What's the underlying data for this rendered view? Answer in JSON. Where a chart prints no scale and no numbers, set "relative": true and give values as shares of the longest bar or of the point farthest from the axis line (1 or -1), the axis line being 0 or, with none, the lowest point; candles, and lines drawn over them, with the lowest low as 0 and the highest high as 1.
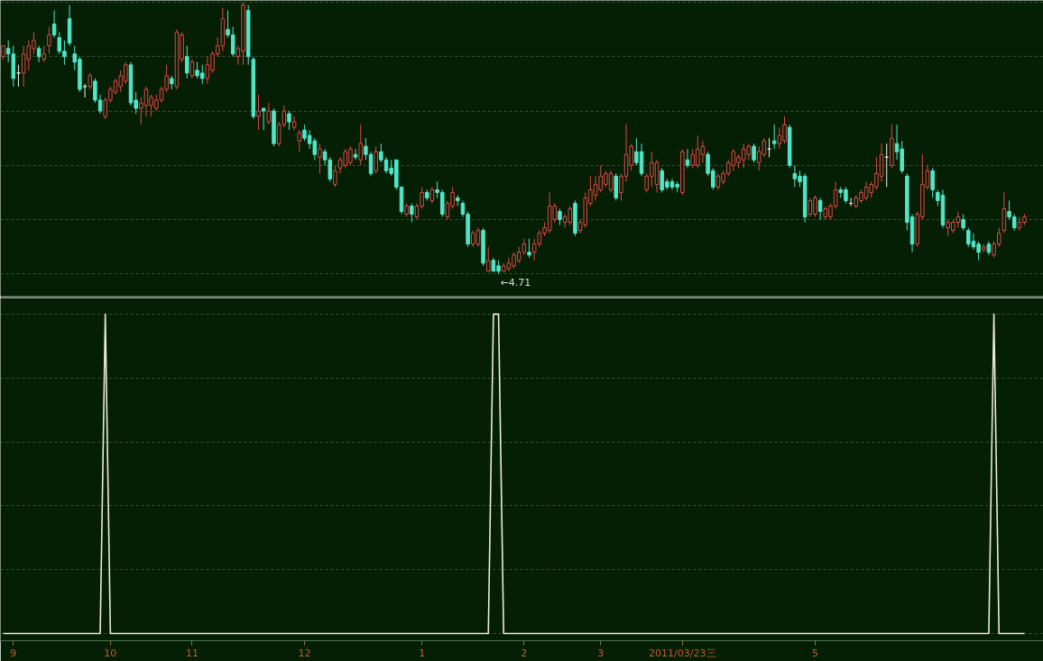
{
  "chart_data": [
    {
      "type": "candlestick",
      "relative": true,
      "grid": "y",
      "tick_labels": false,
      "categories": [
        null,
        null,
        "9",
        null,
        null,
        null,
        null,
        null,
        null,
        null,
        null,
        null,
        null,
        null,
        null,
        null,
        null,
        null,
        null,
        null,
        null,
        "10",
        null,
        null,
        null,
        null,
        null,
        null,
        null,
        null,
        null,
        null,
        null,
        null,
        null,
        null,
        null,
        "11",
        null,
        null,
        null,
        null,
        null,
        null,
        null,
        null,
        null,
        null,
        null,
        null,
        null,
        null,
        null,
        null,
        null,
        null,
        null,
        null,
        null,
        "12",
        null,
        null,
        null,
        null,
        null,
        null,
        null,
        null,
        null,
        null,
        null,
        null,
        null,
        null,
        null,
        null,
        null,
        null,
        null,
        null,
        null,
        null,
        "1",
        null,
        null,
        null,
        null,
        null,
        null,
        null,
        null,
        null,
        null,
        null,
        null,
        null,
        null,
        null,
        null,
        null,
        null,
        null,
        "2",
        null,
        null,
        null,
        null,
        null,
        null,
        null,
        null,
        null,
        null,
        null,
        null,
        null,
        null,
        "3",
        null,
        null,
        null,
        null,
        null,
        null,
        null,
        null,
        null,
        null,
        null,
        null,
        null,
        null,
        null,
        "2011/03/23三",
        null,
        null,
        null,
        null,
        null,
        null,
        null,
        null,
        null,
        null,
        null,
        null,
        null,
        null,
        null,
        null,
        null,
        null,
        null,
        null,
        null,
        null,
        null,
        null,
        null,
        "5",
        null,
        null,
        null,
        null,
        null,
        null,
        null,
        null,
        null,
        null,
        null,
        null,
        null,
        null,
        null,
        null,
        null,
        null,
        null,
        null,
        null,
        null,
        null,
        null,
        null,
        null,
        null,
        null,
        null,
        null,
        null,
        null,
        null,
        null,
        null,
        null,
        null,
        null,
        null,
        null,
        null
      ],
      "ohlc": [
        [
          0.8,
          0.84,
          0.79,
          0.84
        ],
        [
          0.83,
          0.86,
          0.78,
          0.81
        ],
        [
          0.81,
          0.84,
          0.69,
          0.72
        ],
        [
          0.74,
          0.77,
          0.69,
          0.74
        ],
        [
          0.74,
          0.84,
          0.69,
          0.81
        ],
        [
          0.79,
          0.86,
          0.75,
          0.84
        ],
        [
          0.83,
          0.89,
          0.81,
          0.86
        ],
        [
          0.83,
          0.84,
          0.78,
          0.8
        ],
        [
          0.79,
          0.84,
          0.78,
          0.81
        ],
        [
          0.84,
          0.91,
          0.81,
          0.88
        ],
        [
          0.92,
          0.97,
          0.87,
          0.88
        ],
        [
          0.87,
          0.89,
          0.81,
          0.82
        ],
        [
          0.82,
          0.86,
          0.77,
          0.8
        ],
        [
          0.94,
          0.99,
          0.84,
          0.85
        ],
        [
          0.81,
          0.84,
          0.75,
          0.78
        ],
        [
          0.79,
          0.8,
          0.67,
          0.68
        ],
        [
          0.69,
          0.7,
          0.65,
          0.69
        ],
        [
          0.69,
          0.74,
          0.68,
          0.73
        ],
        [
          0.71,
          0.72,
          0.63,
          0.64
        ],
        [
          0.64,
          0.66,
          0.59,
          0.6
        ],
        [
          0.58,
          0.65,
          0.57,
          0.64
        ],
        [
          0.64,
          0.69,
          0.63,
          0.68
        ],
        [
          0.67,
          0.72,
          0.66,
          0.71
        ],
        [
          0.69,
          0.75,
          0.67,
          0.73
        ],
        [
          0.71,
          0.78,
          0.7,
          0.77
        ],
        [
          0.77,
          0.78,
          0.62,
          0.63
        ],
        [
          0.64,
          0.67,
          0.59,
          0.61
        ],
        [
          0.61,
          0.65,
          0.55,
          0.63
        ],
        [
          0.62,
          0.69,
          0.58,
          0.68
        ],
        [
          0.62,
          0.66,
          0.58,
          0.65
        ],
        [
          0.61,
          0.66,
          0.6,
          0.64
        ],
        [
          0.64,
          0.69,
          0.63,
          0.68
        ],
        [
          0.68,
          0.77,
          0.67,
          0.73
        ],
        [
          0.72,
          0.73,
          0.68,
          0.7
        ],
        [
          0.69,
          0.9,
          0.68,
          0.89
        ],
        [
          0.79,
          0.89,
          0.78,
          0.88
        ],
        [
          0.8,
          0.84,
          0.72,
          0.74
        ],
        [
          0.73,
          0.79,
          0.72,
          0.78
        ],
        [
          0.75,
          0.78,
          0.72,
          0.73
        ],
        [
          0.74,
          0.77,
          0.7,
          0.72
        ],
        [
          0.72,
          0.8,
          0.7,
          0.77
        ],
        [
          0.75,
          0.82,
          0.74,
          0.81
        ],
        [
          0.81,
          0.87,
          0.8,
          0.84
        ],
        [
          0.84,
          0.98,
          0.82,
          0.94
        ],
        [
          0.9,
          0.97,
          0.87,
          0.88
        ],
        [
          0.88,
          0.91,
          0.8,
          0.81
        ],
        [
          0.8,
          0.84,
          0.77,
          0.83
        ],
        [
          0.82,
          1,
          0.77,
          0.99
        ],
        [
          0.97,
          0.99,
          0.77,
          0.8
        ],
        [
          0.79,
          0.8,
          0.57,
          0.58
        ],
        [
          0.58,
          0.66,
          0.53,
          0.6
        ],
        [
          0.61,
          0.61,
          0.53,
          0.6
        ],
        [
          0.56,
          0.63,
          0.55,
          0.6
        ],
        [
          0.6,
          0.61,
          0.47,
          0.48
        ],
        [
          0.48,
          0.56,
          0.47,
          0.55
        ],
        [
          0.55,
          0.62,
          0.54,
          0.6
        ],
        [
          0.59,
          0.6,
          0.53,
          0.56
        ],
        [
          0.54,
          0.58,
          0.53,
          0.56
        ],
        [
          0.49,
          0.53,
          0.45,
          0.52
        ],
        [
          0.53,
          0.55,
          0.49,
          0.5
        ],
        [
          0.51,
          0.53,
          0.46,
          0.48
        ],
        [
          0.49,
          0.5,
          0.42,
          0.44
        ],
        [
          0.43,
          0.48,
          0.37,
          0.46
        ],
        [
          0.45,
          0.46,
          0.4,
          0.42
        ],
        [
          0.42,
          0.43,
          0.34,
          0.35
        ],
        [
          0.33,
          0.4,
          0.32,
          0.38
        ],
        [
          0.39,
          0.43,
          0.37,
          0.42
        ],
        [
          0.4,
          0.46,
          0.39,
          0.45
        ],
        [
          0.41,
          0.47,
          0.4,
          0.46
        ],
        [
          0.44,
          0.46,
          0.42,
          0.43
        ],
        [
          0.42,
          0.55,
          0.4,
          0.48
        ],
        [
          0.47,
          0.5,
          0.42,
          0.44
        ],
        [
          0.44,
          0.45,
          0.36,
          0.37
        ],
        [
          0.38,
          0.47,
          0.37,
          0.45
        ],
        [
          0.45,
          0.48,
          0.41,
          0.42
        ],
        [
          0.42,
          0.43,
          0.37,
          0.38
        ],
        [
          0.39,
          0.42,
          0.36,
          0.37
        ],
        [
          0.42,
          0.42,
          0.31,
          0.32
        ],
        [
          0.32,
          0.32,
          0.22,
          0.23
        ],
        [
          0.22,
          0.26,
          0.21,
          0.25
        ],
        [
          0.25,
          0.26,
          0.19,
          0.22
        ],
        [
          0.21,
          0.26,
          0.2,
          0.25
        ],
        [
          0.25,
          0.32,
          0.24,
          0.3
        ],
        [
          0.3,
          0.31,
          0.27,
          0.28
        ],
        [
          0.27,
          0.32,
          0.26,
          0.31
        ],
        [
          0.31,
          0.34,
          0.28,
          0.3
        ],
        [
          0.3,
          0.31,
          0.21,
          0.22
        ],
        [
          0.21,
          0.27,
          0.2,
          0.26
        ],
        [
          0.25,
          0.32,
          0.24,
          0.3
        ],
        [
          0.28,
          0.29,
          0.25,
          0.27
        ],
        [
          0.26,
          0.27,
          0.21,
          0.22
        ],
        [
          0.22,
          0.23,
          0.1,
          0.11
        ],
        [
          0.11,
          0.16,
          0.1,
          0.15
        ],
        [
          0.11,
          0.17,
          0.1,
          0.16
        ],
        [
          0.16,
          0.17,
          0.03,
          0.04
        ],
        [
          0.01,
          0.1,
          0.01,
          0.05
        ],
        [
          0.05,
          0.06,
          0.01,
          0.01
        ],
        [
          0.03,
          0.05,
          0,
          0.01
        ],
        [
          0.01,
          0.04,
          0.01,
          0.03
        ],
        [
          0.02,
          0.06,
          0.01,
          0.04
        ],
        [
          0.03,
          0.08,
          0.02,
          0.07
        ],
        [
          0.05,
          0.1,
          0.04,
          0.08
        ],
        [
          0.08,
          0.13,
          0.07,
          0.11
        ],
        [
          0.08,
          0.13,
          0.06,
          0.07
        ],
        [
          0.08,
          0.13,
          0.05,
          0.11
        ],
        [
          0.11,
          0.16,
          0.1,
          0.15
        ],
        [
          0.15,
          0.19,
          0.14,
          0.17
        ],
        [
          0.16,
          0.3,
          0.15,
          0.25
        ],
        [
          0.2,
          0.26,
          0.19,
          0.25
        ],
        [
          0.23,
          0.24,
          0.18,
          0.2
        ],
        [
          0.19,
          0.22,
          0.17,
          0.21
        ],
        [
          0.19,
          0.25,
          0.18,
          0.24
        ],
        [
          0.26,
          0.27,
          0.14,
          0.15
        ],
        [
          0.16,
          0.2,
          0.15,
          0.19
        ],
        [
          0.18,
          0.3,
          0.17,
          0.28
        ],
        [
          0.26,
          0.36,
          0.25,
          0.31
        ],
        [
          0.29,
          0.36,
          0.27,
          0.33
        ],
        [
          0.31,
          0.4,
          0.3,
          0.36
        ],
        [
          0.33,
          0.38,
          0.32,
          0.37
        ],
        [
          0.31,
          0.38,
          0.3,
          0.37
        ],
        [
          0.36,
          0.37,
          0.27,
          0.28
        ],
        [
          0.3,
          0.37,
          0.27,
          0.36
        ],
        [
          0.36,
          0.55,
          0.34,
          0.44
        ],
        [
          0.4,
          0.48,
          0.38,
          0.47
        ],
        [
          0.45,
          0.5,
          0.4,
          0.41
        ],
        [
          0.45,
          0.48,
          0.36,
          0.37
        ],
        [
          0.31,
          0.37,
          0.3,
          0.36
        ],
        [
          0.36,
          0.45,
          0.32,
          0.41
        ],
        [
          0.33,
          0.42,
          0.3,
          0.41
        ],
        [
          0.38,
          0.39,
          0.3,
          0.31
        ],
        [
          0.34,
          0.35,
          0.31,
          0.32
        ],
        [
          0.34,
          0.35,
          0.31,
          0.32
        ],
        [
          0.33,
          0.34,
          0.3,
          0.32
        ],
        [
          0.3,
          0.46,
          0.29,
          0.45
        ],
        [
          0.42,
          0.46,
          0.39,
          0.4
        ],
        [
          0.4,
          0.46,
          0.39,
          0.44
        ],
        [
          0.4,
          0.51,
          0.39,
          0.46
        ],
        [
          0.44,
          0.49,
          0.41,
          0.47
        ],
        [
          0.44,
          0.45,
          0.36,
          0.37
        ],
        [
          0.38,
          0.39,
          0.31,
          0.32
        ],
        [
          0.32,
          0.37,
          0.31,
          0.36
        ],
        [
          0.34,
          0.38,
          0.33,
          0.37
        ],
        [
          0.37,
          0.42,
          0.36,
          0.41
        ],
        [
          0.4,
          0.46,
          0.38,
          0.45
        ],
        [
          0.41,
          0.44,
          0.39,
          0.43
        ],
        [
          0.42,
          0.48,
          0.39,
          0.46
        ],
        [
          0.44,
          0.48,
          0.42,
          0.47
        ],
        [
          0.47,
          0.48,
          0.41,
          0.42
        ],
        [
          0.41,
          0.47,
          0.38,
          0.45
        ],
        [
          0.44,
          0.5,
          0.43,
          0.49
        ],
        [
          0.46,
          0.5,
          0.43,
          0.46
        ],
        [
          0.49,
          0.55,
          0.46,
          0.48
        ],
        [
          0.48,
          0.54,
          0.46,
          0.51
        ],
        [
          0.49,
          0.58,
          0.48,
          0.55
        ],
        [
          0.54,
          0.55,
          0.39,
          0.4
        ],
        [
          0.37,
          0.4,
          0.32,
          0.35
        ],
        [
          0.36,
          0.38,
          0.32,
          0.34
        ],
        [
          0.36,
          0.37,
          0.19,
          0.21
        ],
        [
          0.22,
          0.28,
          0.21,
          0.27
        ],
        [
          0.22,
          0.29,
          0.21,
          0.28
        ],
        [
          0.27,
          0.28,
          0.2,
          0.23
        ],
        [
          0.21,
          0.25,
          0.2,
          0.24
        ],
        [
          0.21,
          0.26,
          0.2,
          0.25
        ],
        [
          0.25,
          0.34,
          0.24,
          0.31
        ],
        [
          0.31,
          0.32,
          0.28,
          0.3
        ],
        [
          0.31,
          0.32,
          0.26,
          0.27
        ],
        [
          0.26,
          0.28,
          0.25,
          0.26
        ],
        [
          0.25,
          0.29,
          0.24,
          0.28
        ],
        [
          0.27,
          0.31,
          0.26,
          0.3
        ],
        [
          0.28,
          0.34,
          0.27,
          0.32
        ],
        [
          0.3,
          0.34,
          0.28,
          0.33
        ],
        [
          0.32,
          0.43,
          0.31,
          0.37
        ],
        [
          0.36,
          0.48,
          0.34,
          0.44
        ],
        [
          0.43,
          0.48,
          0.32,
          0.43
        ],
        [
          0.4,
          0.55,
          0.39,
          0.5
        ],
        [
          0.48,
          0.55,
          0.42,
          0.45
        ],
        [
          0.46,
          0.49,
          0.37,
          0.38
        ],
        [
          0.36,
          0.37,
          0.16,
          0.19
        ],
        [
          0.21,
          0.22,
          0.08,
          0.11
        ],
        [
          0.11,
          0.23,
          0.1,
          0.22
        ],
        [
          0.21,
          0.44,
          0.2,
          0.33
        ],
        [
          0.32,
          0.4,
          0.31,
          0.38
        ],
        [
          0.38,
          0.39,
          0.28,
          0.31
        ],
        [
          0.3,
          0.31,
          0.25,
          0.27
        ],
        [
          0.29,
          0.31,
          0.17,
          0.18
        ],
        [
          0.17,
          0.2,
          0.14,
          0.19
        ],
        [
          0.16,
          0.2,
          0.15,
          0.19
        ],
        [
          0.19,
          0.23,
          0.17,
          0.21
        ],
        [
          0.2,
          0.22,
          0.16,
          0.17
        ],
        [
          0.16,
          0.17,
          0.1,
          0.11
        ],
        [
          0.12,
          0.15,
          0.09,
          0.1
        ],
        [
          0.11,
          0.12,
          0.05,
          0.08
        ],
        [
          0.09,
          0.11,
          0.08,
          0.1
        ],
        [
          0.11,
          0.12,
          0.07,
          0.08
        ],
        [
          0.07,
          0.12,
          0.06,
          0.11
        ],
        [
          0.11,
          0.17,
          0.1,
          0.15
        ],
        [
          0.16,
          0.3,
          0.15,
          0.24
        ],
        [
          0.23,
          0.27,
          0.2,
          0.21
        ],
        [
          0.21,
          0.22,
          0.16,
          0.17
        ],
        [
          0.17,
          0.21,
          0.16,
          0.19
        ],
        [
          0.19,
          0.22,
          0.18,
          0.21
        ]
      ],
      "colors": [
        "#e04848",
        "#50e6c8",
        "#50e6c8",
        "#f0f0f0",
        "#e04848",
        "#e04848",
        "#e04848",
        "#50e6c8",
        "#e04848",
        "#e04848",
        "#50e6c8",
        "#50e6c8",
        "#50e6c8",
        "#50e6c8",
        "#50e6c8",
        "#50e6c8",
        "#f0f0f0",
        "#e04848",
        "#50e6c8",
        "#50e6c8",
        "#e04848",
        "#e04848",
        "#e04848",
        "#e04848",
        "#e04848",
        "#50e6c8",
        "#50e6c8",
        "#e04848",
        "#e04848",
        "#e04848",
        "#e04848",
        "#e04848",
        "#e04848",
        "#50e6c8",
        "#e04848",
        "#e04848",
        "#50e6c8",
        "#e04848",
        "#50e6c8",
        "#50e6c8",
        "#e04848",
        "#e04848",
        "#e04848",
        "#e04848",
        "#50e6c8",
        "#50e6c8",
        "#e04848",
        "#e04848",
        "#50e6c8",
        "#50e6c8",
        "#e04848",
        "#50e6c8",
        "#e04848",
        "#50e6c8",
        "#e04848",
        "#e04848",
        "#50e6c8",
        "#e04848",
        "#e04848",
        "#50e6c8",
        "#50e6c8",
        "#50e6c8",
        "#e04848",
        "#50e6c8",
        "#50e6c8",
        "#e04848",
        "#e04848",
        "#e04848",
        "#e04848",
        "#50e6c8",
        "#e04848",
        "#50e6c8",
        "#50e6c8",
        "#e04848",
        "#50e6c8",
        "#50e6c8",
        "#50e6c8",
        "#50e6c8",
        "#50e6c8",
        "#e04848",
        "#50e6c8",
        "#e04848",
        "#e04848",
        "#50e6c8",
        "#e04848",
        "#50e6c8",
        "#50e6c8",
        "#e04848",
        "#e04848",
        "#50e6c8",
        "#50e6c8",
        "#50e6c8",
        "#e04848",
        "#e04848",
        "#50e6c8",
        "#e04848",
        "#50e6c8",
        "#50e6c8",
        "#e04848",
        "#e04848",
        "#e04848",
        "#e04848",
        "#e04848",
        "#50e6c8",
        "#e04848",
        "#e04848",
        "#e04848",
        "#e04848",
        "#e04848",
        "#50e6c8",
        "#e04848",
        "#e04848",
        "#50e6c8",
        "#e04848",
        "#e04848",
        "#e04848",
        "#e04848",
        "#e04848",
        "#e04848",
        "#e04848",
        "#50e6c8",
        "#e04848",
        "#e04848",
        "#e04848",
        "#50e6c8",
        "#50e6c8",
        "#e04848",
        "#e04848",
        "#e04848",
        "#50e6c8",
        "#50e6c8",
        "#50e6c8",
        "#50e6c8",
        "#e04848",
        "#50e6c8",
        "#e04848",
        "#e04848",
        "#e04848",
        "#50e6c8",
        "#50e6c8",
        "#e04848",
        "#e04848",
        "#e04848",
        "#e04848",
        "#e04848",
        "#e04848",
        "#e04848",
        "#50e6c8",
        "#e04848",
        "#e04848",
        "#f0f0f0",
        "#50e6c8",
        "#e04848",
        "#e04848",
        "#50e6c8",
        "#50e6c8",
        "#50e6c8",
        "#50e6c8",
        "#e04848",
        "#e04848",
        "#50e6c8",
        "#e04848",
        "#e04848",
        "#e04848",
        "#50e6c8",
        "#50e6c8",
        "#f0f0f0",
        "#e04848",
        "#e04848",
        "#e04848",
        "#e04848",
        "#e04848",
        "#e04848",
        "#f0f0f0",
        "#e04848",
        "#50e6c8",
        "#50e6c8",
        "#50e6c8",
        "#50e6c8",
        "#e04848",
        "#e04848",
        "#e04848",
        "#50e6c8",
        "#50e6c8",
        "#50e6c8",
        "#e04848",
        "#e04848",
        "#e04848",
        "#50e6c8",
        "#50e6c8",
        "#50e6c8",
        "#50e6c8",
        "#e04848",
        "#50e6c8",
        "#e04848",
        "#e04848",
        "#e04848",
        "#50e6c8",
        "#50e6c8",
        "#e04848",
        "#e04848"
      ],
      "annotations": [
        "←4.71"
      ]
    },
    {
      "type": "line",
      "relative": true,
      "grid": "y",
      "tick_labels": "x",
      "categories": [
        null,
        null,
        "9",
        null,
        null,
        null,
        null,
        null,
        null,
        null,
        null,
        null,
        null,
        null,
        null,
        null,
        null,
        null,
        null,
        null,
        null,
        "10",
        null,
        null,
        null,
        null,
        null,
        null,
        null,
        null,
        null,
        null,
        null,
        null,
        null,
        null,
        null,
        "11",
        null,
        null,
        null,
        null,
        null,
        null,
        null,
        null,
        null,
        null,
        null,
        null,
        null,
        null,
        null,
        null,
        null,
        null,
        null,
        null,
        null,
        "12",
        null,
        null,
        null,
        null,
        null,
        null,
        null,
        null,
        null,
        null,
        null,
        null,
        null,
        null,
        null,
        null,
        null,
        null,
        null,
        null,
        null,
        null,
        "1",
        null,
        null,
        null,
        null,
        null,
        null,
        null,
        null,
        null,
        null,
        null,
        null,
        null,
        null,
        null,
        null,
        null,
        null,
        null,
        "2",
        null,
        null,
        null,
        null,
        null,
        null,
        null,
        null,
        null,
        null,
        null,
        null,
        null,
        null,
        "3",
        null,
        null,
        null,
        null,
        null,
        null,
        null,
        null,
        null,
        null,
        null,
        null,
        null,
        null,
        null,
        "2011/03/23三",
        null,
        null,
        null,
        null,
        null,
        null,
        null,
        null,
        null,
        null,
        null,
        null,
        null,
        null,
        null,
        null,
        null,
        null,
        null,
        null,
        null,
        null,
        null,
        null,
        null,
        "5",
        null,
        null,
        null,
        null,
        null,
        null,
        null,
        null,
        null,
        null,
        null,
        null,
        null,
        null,
        null,
        null,
        null,
        null,
        null,
        null,
        null,
        null,
        null,
        null,
        null,
        null,
        null,
        null,
        null,
        null,
        null,
        null,
        null,
        null,
        null,
        null,
        null,
        null,
        null,
        null,
        null
      ],
      "series": [
        {
          "color": "#ecebd8",
          "values": [
            0,
            0,
            0,
            0,
            0,
            0,
            0,
            0,
            0,
            0,
            0,
            0,
            0,
            0,
            0,
            0,
            0,
            0,
            0,
            0,
            1,
            0,
            0,
            0,
            0,
            0,
            0,
            0,
            0,
            0,
            0,
            0,
            0,
            0,
            0,
            0,
            0,
            0,
            0,
            0,
            0,
            0,
            0,
            0,
            0,
            0,
            0,
            0,
            0,
            0,
            0,
            0,
            0,
            0,
            0,
            0,
            0,
            0,
            0,
            0,
            0,
            0,
            0,
            0,
            0,
            0,
            0,
            0,
            0,
            0,
            0,
            0,
            0,
            0,
            0,
            0,
            0,
            0,
            0,
            0,
            0,
            0,
            0,
            0,
            0,
            0,
            0,
            0,
            0,
            0,
            0,
            0,
            0,
            0,
            0,
            0,
            1,
            1,
            0,
            0,
            0,
            0,
            0,
            0,
            0,
            0,
            0,
            0,
            0,
            0,
            0,
            0,
            0,
            0,
            0,
            0,
            0,
            0,
            0,
            0,
            0,
            0,
            0,
            0,
            0,
            0,
            0,
            0,
            0,
            0,
            0,
            0,
            0,
            0,
            0,
            0,
            0,
            0,
            0,
            0,
            0,
            0,
            0,
            0,
            0,
            0,
            0,
            0,
            0,
            0,
            0,
            0,
            0,
            0,
            0,
            0,
            0,
            0,
            0,
            0,
            0,
            0,
            0,
            0,
            0,
            0,
            0,
            0,
            0,
            0,
            0,
            0,
            0,
            0,
            0,
            0,
            0,
            0,
            0,
            0,
            0,
            0,
            0,
            0,
            0,
            0,
            0,
            0,
            0,
            0,
            0,
            0,
            0,
            0,
            1,
            0,
            0,
            0,
            0,
            0,
            0
          ]
        }
      ]
    }
  ]
}
